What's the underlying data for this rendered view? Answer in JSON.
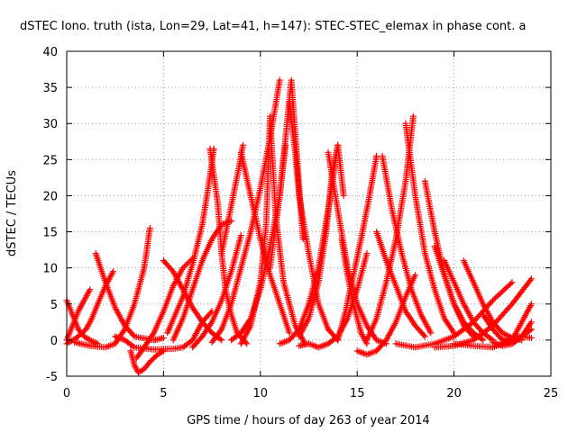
{
  "chart_data": {
    "type": "scatter",
    "title": "dSTEC Iono. truth (ista, Lon=29, Lat=41, h=147): STEC-STEC_elemax in phase cont. a",
    "xlabel": "GPS time / hours of day 263 of year 2014",
    "ylabel": "dSTEC  / TECUs",
    "xlim": [
      0,
      25
    ],
    "ylim": [
      -5,
      40
    ],
    "xticks": [
      "0",
      "5",
      "10",
      "15",
      "20",
      "25"
    ],
    "yticks": [
      "-5",
      "0",
      "5",
      "10",
      "15",
      "20",
      "25",
      "30",
      "35",
      "40"
    ],
    "grid": true,
    "marker": "+",
    "color": "#ff0000",
    "series": [
      {
        "x": [
          0.0,
          0.3,
          0.6,
          0.9,
          1.2
        ],
        "y": [
          0.0,
          2.0,
          4.0,
          5.5,
          7.0
        ]
      },
      {
        "x": [
          0.0,
          0.3,
          0.6,
          0.9,
          1.2,
          1.6
        ],
        "y": [
          5.5,
          3.5,
          1.5,
          0.5,
          0.0,
          -0.5
        ]
      },
      {
        "x": [
          0.0,
          0.5,
          1.0,
          1.3,
          1.6,
          2.0,
          2.4
        ],
        "y": [
          -0.5,
          0.3,
          1.5,
          3.0,
          5.0,
          7.5,
          9.5
        ]
      },
      {
        "x": [
          1.5,
          2.0,
          2.5,
          3.0,
          3.5,
          4.5,
          5.0
        ],
        "y": [
          12.0,
          8.0,
          4.5,
          2.0,
          0.5,
          0.0,
          0.3
        ]
      },
      {
        "x": [
          0.4,
          1.2,
          2.0,
          2.5,
          3.0,
          3.5,
          4.0,
          4.3
        ],
        "y": [
          -0.3,
          -0.8,
          -1.0,
          -0.5,
          1.5,
          5.0,
          10.0,
          15.5
        ]
      },
      {
        "x": [
          3.3,
          3.5,
          3.7,
          4.0,
          4.3,
          4.7,
          5.0
        ],
        "y": [
          -1.5,
          -3.5,
          -4.5,
          -4.0,
          -3.0,
          -2.0,
          -1.5
        ]
      },
      {
        "x": [
          3.6,
          4.0,
          4.5,
          5.0,
          5.5,
          6.0,
          6.5
        ],
        "y": [
          -2.5,
          -1.0,
          1.0,
          4.0,
          7.5,
          10.0,
          11.3
        ]
      },
      {
        "x": [
          5.0,
          5.5,
          6.0,
          6.5,
          7.0,
          7.5,
          8.0
        ],
        "y": [
          11.0,
          9.5,
          7.0,
          4.5,
          2.5,
          1.0,
          0.0
        ]
      },
      {
        "x": [
          2.5,
          3.0,
          3.5,
          4.5,
          5.5,
          6.0,
          6.5,
          7.0,
          7.5
        ],
        "y": [
          0.5,
          0.0,
          -1.0,
          -1.3,
          -1.2,
          -1.0,
          0.0,
          2.5,
          4.0
        ]
      },
      {
        "x": [
          5.5,
          6.0,
          6.5,
          7.0,
          7.5,
          8.0,
          8.5
        ],
        "y": [
          0.0,
          3.0,
          7.0,
          11.0,
          14.0,
          16.0,
          16.5
        ]
      },
      {
        "x": [
          5.2,
          6.0,
          6.5,
          7.0,
          7.3,
          7.6
        ],
        "y": [
          1.0,
          6.0,
          10.5,
          16.0,
          21.0,
          26.5
        ]
      },
      {
        "x": [
          7.4,
          7.8,
          8.0,
          8.2,
          8.5,
          8.8,
          9.3
        ],
        "y": [
          26.5,
          19.0,
          12.0,
          7.0,
          3.5,
          1.0,
          -0.5
        ]
      },
      {
        "x": [
          6.5,
          7.0,
          7.5,
          8.0,
          8.5,
          9.0
        ],
        "y": [
          -1.0,
          0.5,
          2.5,
          5.5,
          9.5,
          14.5
        ]
      },
      {
        "x": [
          7.5,
          8.0,
          8.5,
          9.0,
          9.5,
          10.0,
          10.5,
          11.0
        ],
        "y": [
          -0.3,
          1.5,
          5.0,
          10.0,
          15.0,
          21.0,
          28.0,
          36.0
        ]
      },
      {
        "x": [
          8.0,
          8.3,
          8.6,
          8.9,
          9.1
        ],
        "y": [
          12.0,
          16.0,
          20.0,
          24.0,
          27.0
        ]
      },
      {
        "x": [
          9.0,
          9.5,
          10.0,
          10.5,
          11.0,
          11.5
        ],
        "y": [
          26.0,
          20.0,
          14.0,
          9.0,
          5.0,
          1.0
        ]
      },
      {
        "x": [
          8.5,
          9.0,
          9.5,
          10.0,
          10.5,
          11.0,
          11.3
        ],
        "y": [
          0.0,
          1.0,
          3.0,
          7.0,
          13.0,
          20.0,
          27.0
        ]
      },
      {
        "x": [
          9.0,
          9.5,
          10.0,
          10.3,
          10.5,
          10.8,
          11.2,
          11.8,
          12.3
        ],
        "y": [
          -0.5,
          2.0,
          8.0,
          16.0,
          31.0,
          17.0,
          8.0,
          2.0,
          -0.5
        ]
      },
      {
        "x": [
          10.5,
          11.0,
          11.3,
          11.6,
          11.9,
          12.2
        ],
        "y": [
          10.0,
          20.0,
          28.0,
          36.0,
          25.0,
          14.0
        ]
      },
      {
        "x": [
          11.5,
          11.8,
          12.0,
          12.5,
          13.0,
          13.5,
          14.0
        ],
        "y": [
          33.0,
          26.0,
          20.0,
          12.0,
          5.0,
          1.5,
          0.0
        ]
      },
      {
        "x": [
          11.0,
          11.5,
          12.0,
          12.5,
          13.0,
          13.5,
          14.0
        ],
        "y": [
          -0.5,
          0.0,
          1.5,
          5.0,
          10.0,
          18.0,
          27.0
        ]
      },
      {
        "x": [
          12.0,
          12.5,
          13.0,
          13.4,
          13.7,
          14.0,
          14.3
        ],
        "y": [
          0.5,
          3.0,
          8.0,
          15.0,
          23.0,
          27.0,
          20.0
        ]
      },
      {
        "x": [
          13.5,
          14.0,
          14.5,
          15.0,
          15.5,
          16.0,
          16.5
        ],
        "y": [
          26.0,
          18.0,
          10.0,
          5.0,
          2.0,
          0.0,
          -0.5
        ]
      },
      {
        "x": [
          12.0,
          12.5,
          13.0,
          13.5,
          14.0,
          14.5,
          15.0,
          15.5
        ],
        "y": [
          -0.8,
          -0.5,
          -1.0,
          -0.5,
          0.5,
          3.0,
          7.0,
          12.0
        ]
      },
      {
        "x": [
          14.0,
          14.4,
          14.8,
          15.2,
          15.6,
          16.0
        ],
        "y": [
          0.0,
          4.0,
          9.0,
          14.0,
          19.5,
          25.5
        ]
      },
      {
        "x": [
          14.2,
          14.5,
          14.8,
          15.2,
          15.5
        ],
        "y": [
          14.0,
          9.0,
          5.0,
          1.0,
          -0.5
        ]
      },
      {
        "x": [
          15.0,
          15.5,
          16.0,
          16.5,
          17.0,
          17.5,
          18.0
        ],
        "y": [
          -1.5,
          -2.0,
          -1.5,
          0.0,
          2.5,
          6.0,
          9.0
        ]
      },
      {
        "x": [
          16.0,
          16.5,
          17.0,
          17.5,
          18.0,
          18.5
        ],
        "y": [
          15.0,
          11.0,
          7.5,
          4.0,
          2.0,
          0.5
        ]
      },
      {
        "x": [
          16.3,
          16.8,
          17.3,
          17.8,
          18.3,
          18.8
        ],
        "y": [
          25.5,
          18.0,
          12.0,
          7.0,
          3.5,
          1.0
        ]
      },
      {
        "x": [
          15.5,
          16.0,
          16.5,
          17.0,
          17.5,
          17.9
        ],
        "y": [
          0.0,
          3.0,
          8.0,
          14.0,
          22.0,
          31.0
        ]
      },
      {
        "x": [
          17.5,
          18.0,
          18.5,
          19.0,
          19.5,
          20.0
        ],
        "y": [
          30.0,
          20.0,
          12.0,
          7.0,
          3.0,
          1.0
        ]
      },
      {
        "x": [
          18.5,
          19.0,
          19.5,
          20.0,
          20.5,
          21.0
        ],
        "y": [
          22.0,
          15.0,
          9.0,
          5.0,
          2.0,
          0.5
        ]
      },
      {
        "x": [
          19.0,
          19.5,
          20.0,
          20.5,
          21.0,
          21.5
        ],
        "y": [
          13.0,
          9.0,
          5.0,
          2.5,
          1.0,
          0.0
        ]
      },
      {
        "x": [
          19.5,
          20.0,
          20.5,
          21.0,
          21.5,
          22.0
        ],
        "y": [
          11.0,
          8.0,
          5.0,
          2.5,
          1.0,
          0.0
        ]
      },
      {
        "x": [
          20.5,
          21.0,
          21.5,
          22.0,
          22.5,
          23.0,
          23.5
        ],
        "y": [
          11.0,
          8.0,
          5.0,
          2.5,
          1.0,
          0.3,
          0.0
        ]
      },
      {
        "x": [
          17.0,
          18.0,
          19.0,
          20.0,
          21.0,
          22.0,
          23.0
        ],
        "y": [
          -0.5,
          -1.0,
          -0.5,
          0.5,
          2.5,
          5.5,
          8.0
        ]
      },
      {
        "x": [
          19.0,
          20.0,
          21.0,
          22.0,
          23.0,
          24.0
        ],
        "y": [
          -1.0,
          -0.8,
          0.0,
          2.0,
          5.0,
          8.5
        ]
      },
      {
        "x": [
          20.0,
          21.0,
          22.0,
          23.0,
          23.5,
          24.0
        ],
        "y": [
          -0.5,
          -0.8,
          -1.0,
          0.0,
          2.5,
          5.0
        ]
      },
      {
        "x": [
          21.5,
          22.0,
          22.5,
          23.0,
          23.5,
          24.0
        ],
        "y": [
          3.5,
          1.5,
          0.0,
          -0.5,
          0.5,
          2.5
        ]
      },
      {
        "x": [
          22.0,
          22.5,
          23.0,
          23.5,
          24.0
        ],
        "y": [
          -0.3,
          -0.8,
          -0.5,
          0.5,
          1.5
        ]
      },
      {
        "x": [
          22.5,
          23.0,
          23.5,
          24.0
        ],
        "y": [
          0.0,
          0.3,
          0.5,
          0.3
        ]
      }
    ]
  }
}
